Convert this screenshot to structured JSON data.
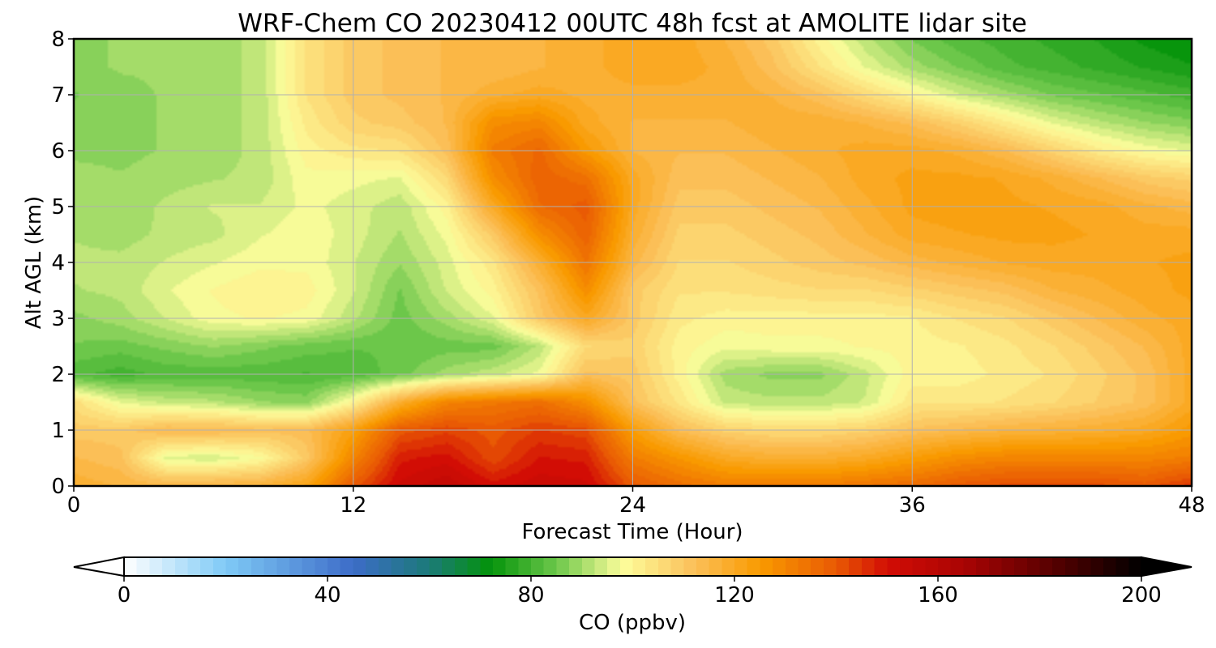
{
  "figure": {
    "title": "WRF-Chem CO  20230412 00UTC 48h fcst at AMOLITE lidar site"
  },
  "chart_data": {
    "type": "heatmap",
    "title": "WRF-Chem CO  20230412 00UTC 48h fcst at AMOLITE lidar site",
    "xlabel": "Forecast Time (Hour)",
    "ylabel": "Alt AGL (km)",
    "xlim": [
      0,
      48
    ],
    "ylim": [
      0,
      8
    ],
    "xticks": [
      0,
      12,
      24,
      36,
      48
    ],
    "yticks": [
      0,
      1,
      2,
      3,
      4,
      5,
      6,
      7,
      8
    ],
    "grid": true,
    "x": [
      0,
      2,
      4,
      6,
      8,
      10,
      12,
      14,
      16,
      18,
      20,
      22,
      24,
      26,
      28,
      30,
      32,
      34,
      36,
      38,
      40,
      42,
      44,
      46,
      48
    ],
    "y": [
      0,
      0.5,
      1,
      1.5,
      2,
      2.5,
      3,
      3.5,
      4,
      4.5,
      5,
      5.5,
      6,
      6.5,
      7,
      7.5,
      8
    ],
    "values": [
      [
        118,
        116,
        115,
        116,
        117,
        122,
        140,
        152,
        156,
        150,
        153,
        152,
        140,
        135,
        132,
        132,
        132,
        134,
        136,
        140,
        142,
        142,
        142,
        140,
        145
      ],
      [
        114,
        112,
        95,
        94,
        98,
        110,
        130,
        148,
        150,
        142,
        149,
        148,
        132,
        126,
        120,
        118,
        118,
        120,
        124,
        128,
        130,
        130,
        130,
        130,
        132
      ],
      [
        110,
        110,
        114,
        114,
        112,
        113,
        123,
        140,
        143,
        140,
        144,
        142,
        124,
        113,
        108,
        106,
        106,
        108,
        112,
        114,
        116,
        117,
        118,
        120,
        125
      ],
      [
        105,
        96,
        93,
        92,
        89,
        88,
        100,
        118,
        130,
        133,
        135,
        128,
        112,
        103,
        93,
        92,
        92,
        94,
        103,
        103,
        104,
        106,
        109,
        112,
        120
      ],
      [
        82,
        80,
        82,
        82,
        82,
        81,
        82,
        85,
        90,
        93,
        97,
        112,
        110,
        100,
        90,
        88,
        88,
        93,
        100,
        100,
        102,
        104,
        108,
        112,
        120
      ],
      [
        86,
        85,
        87,
        89,
        87,
        85,
        84,
        84,
        85,
        85,
        92,
        106,
        108,
        100,
        97,
        98,
        98,
        99,
        100,
        101,
        103,
        106,
        110,
        114,
        120
      ],
      [
        88,
        90,
        94,
        98,
        99,
        98,
        92,
        85,
        90,
        96,
        110,
        120,
        110,
        102,
        100,
        100,
        100,
        100,
        101,
        104,
        106,
        110,
        114,
        118,
        120
      ],
      [
        91,
        92,
        96,
        99,
        101,
        100,
        94,
        86,
        94,
        100,
        112,
        128,
        110,
        104,
        104,
        105,
        106,
        106,
        108,
        110,
        112,
        116,
        118,
        120,
        122
      ],
      [
        92,
        92,
        94,
        96,
        98,
        98,
        94,
        89,
        95,
        103,
        118,
        134,
        115,
        106,
        106,
        108,
        110,
        112,
        115,
        117,
        119,
        120,
        120,
        121,
        122
      ],
      [
        91,
        90,
        92,
        93,
        96,
        98,
        95,
        91,
        97,
        110,
        128,
        138,
        118,
        108,
        108,
        110,
        112,
        116,
        120,
        121,
        122,
        122,
        121,
        120,
        120
      ],
      [
        90,
        89,
        92,
        94,
        94,
        97,
        95,
        92,
        100,
        120,
        136,
        140,
        120,
        110,
        110,
        112,
        114,
        118,
        122,
        123,
        122,
        121,
        120,
        117,
        115
      ],
      [
        90,
        89,
        90,
        91,
        92,
        98,
        97,
        96,
        106,
        128,
        138,
        135,
        120,
        112,
        112,
        114,
        116,
        120,
        122,
        122,
        121,
        118,
        114,
        110,
        108
      ],
      [
        88,
        88,
        89,
        90,
        92,
        100,
        103,
        104,
        112,
        132,
        137,
        125,
        116,
        114,
        114,
        116,
        118,
        120,
        120,
        118,
        114,
        108,
        102,
        98,
        96
      ],
      [
        87,
        88,
        89,
        90,
        92,
        102,
        108,
        110,
        114,
        128,
        130,
        120,
        116,
        116,
        116,
        118,
        118,
        116,
        113,
        108,
        102,
        96,
        92,
        89,
        87
      ],
      [
        86,
        88,
        89,
        90,
        92,
        104,
        110,
        112,
        114,
        118,
        120,
        118,
        118,
        118,
        118,
        116,
        112,
        106,
        100,
        94,
        90,
        86,
        84,
        82,
        80
      ],
      [
        88,
        89,
        89,
        90,
        92,
        104,
        110,
        112,
        114,
        114,
        116,
        118,
        120,
        120,
        118,
        112,
        104,
        96,
        90,
        86,
        82,
        80,
        78,
        76,
        74
      ],
      [
        88,
        89,
        89,
        90,
        92,
        104,
        110,
        112,
        114,
        114,
        116,
        118,
        120,
        120,
        116,
        110,
        100,
        92,
        86,
        82,
        80,
        78,
        76,
        73,
        71
      ]
    ],
    "colorbar": {
      "label": "CO  (ppbv)",
      "range": [
        0,
        200
      ],
      "ticks": [
        0,
        40,
        80,
        120,
        160,
        200
      ],
      "extend": "both",
      "colors": {
        "v0": "#ffffff",
        "v20": "#7fcaf6",
        "v45": "#3d6cc8",
        "v60": "#1b7a78",
        "v72": "#04930a",
        "v85": "#6cc74a",
        "v98": "#fdfd9b",
        "v112": "#fbc05a",
        "v125": "#f99a00",
        "v140": "#e95a04",
        "v150": "#d20d05",
        "v165": "#aa0404",
        "v185": "#4b0000",
        "v200": "#000000"
      }
    }
  }
}
